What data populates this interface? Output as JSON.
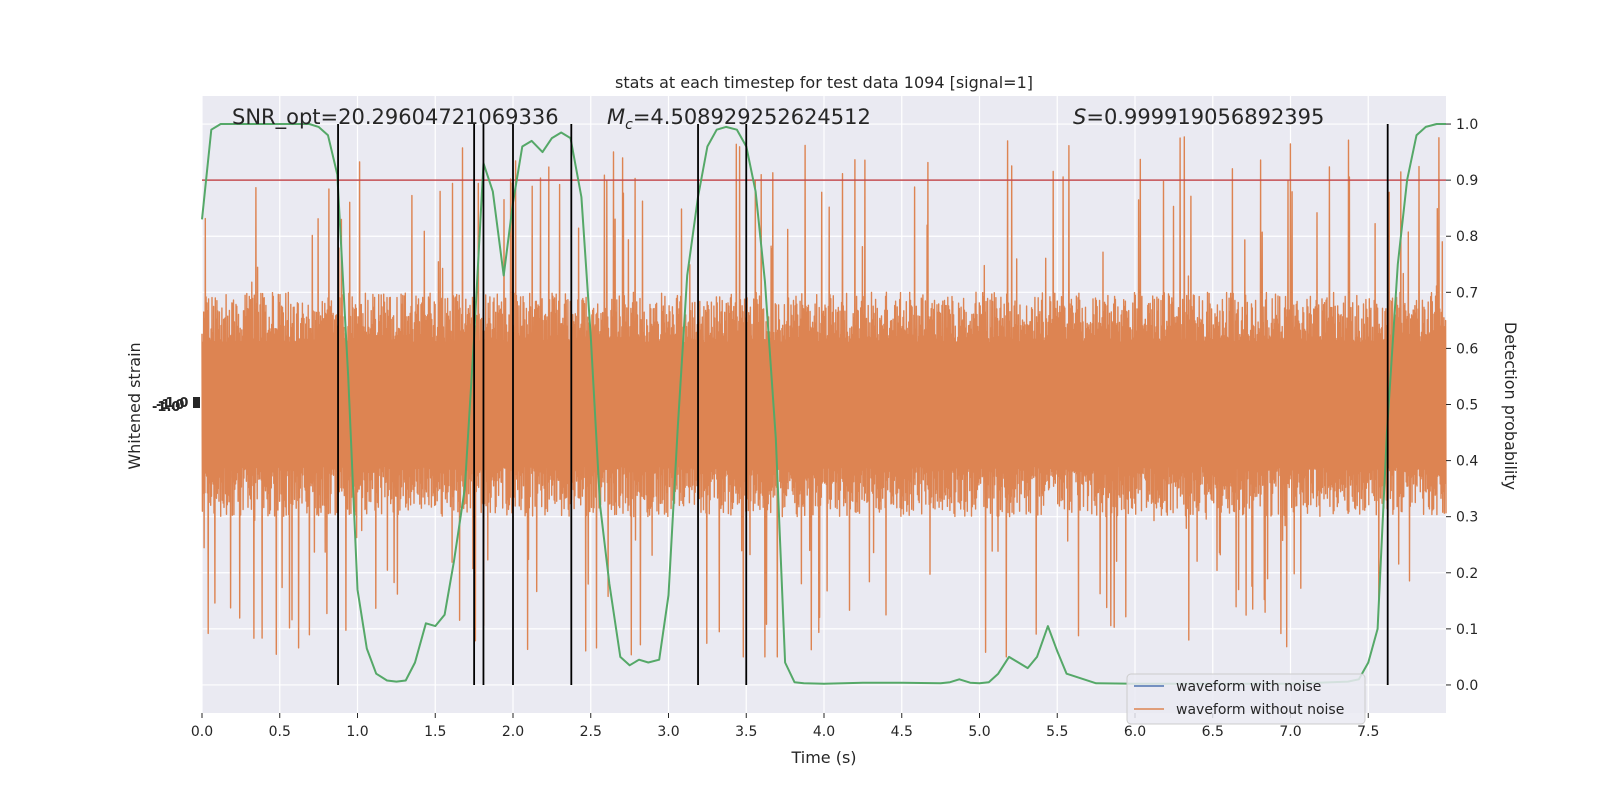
{
  "chart_data": {
    "type": "line",
    "title": "stats at each timestep for test data 1094 [signal=1]",
    "xlabel": "Time (s)",
    "ylabel_left": "Whitened strain",
    "ylabel_right": "Detection probability",
    "xlim": [
      0,
      8
    ],
    "ylim_right": [
      -0.05,
      1.05
    ],
    "x_ticks": [
      "0.0",
      "0.5",
      "1.0",
      "1.5",
      "2.0",
      "2.5",
      "3.0",
      "3.5",
      "4.0",
      "4.5",
      "5.0",
      "5.5",
      "6.0",
      "6.5",
      "7.0",
      "7.5"
    ],
    "y_ticks_right": [
      "0.0",
      "0.1",
      "0.2",
      "0.3",
      "0.4",
      "0.5",
      "0.6",
      "0.7",
      "0.8",
      "0.9",
      "1.0"
    ],
    "left_tick_clutter_text": "-1.0",
    "grid": true,
    "legend_location": "lower right",
    "annotations": {
      "snr": "SNR_opt=20.29604721069336",
      "mc_prefix": "M",
      "mc_sub": "c",
      "mc_value": "=4.508929252624512",
      "s_prefix": "S",
      "s_value": "=0.999919056892395"
    },
    "threshold": 0.9,
    "detection_vlines": [
      0.875,
      1.75,
      1.81,
      2.0,
      2.375,
      3.19,
      3.5,
      7.625
    ],
    "series": [
      {
        "name": "waveform with noise",
        "color": "#4c72b0",
        "style": "dense noise (hidden under orange)"
      },
      {
        "name": "waveform without noise",
        "color": "#dd8452",
        "style": "dense noise trace",
        "center": 0.5,
        "core_half_width": 0.2,
        "spike_range": [
          0.09,
          0.98
        ]
      },
      {
        "name": "detection probability",
        "color": "#55a868",
        "x": [
          0.0,
          0.06,
          0.12,
          0.19,
          0.25,
          0.31,
          0.37,
          0.44,
          0.5,
          0.56,
          0.62,
          0.69,
          0.75,
          0.81,
          0.87,
          0.94,
          1.0,
          1.06,
          1.12,
          1.19,
          1.25,
          1.31,
          1.37,
          1.44,
          1.5,
          1.56,
          1.62,
          1.69,
          1.75,
          1.81,
          1.87,
          1.94,
          2.0,
          2.06,
          2.12,
          2.19,
          2.25,
          2.31,
          2.37,
          2.44,
          2.5,
          2.56,
          2.62,
          2.69,
          2.75,
          2.81,
          2.87,
          2.94,
          3.0,
          3.06,
          3.12,
          3.19,
          3.25,
          3.31,
          3.37,
          3.44,
          3.5,
          3.56,
          3.62,
          3.69,
          3.75,
          3.81,
          3.87,
          4.0,
          4.25,
          4.5,
          4.75,
          4.81,
          4.87,
          4.94,
          5.0,
          5.06,
          5.12,
          5.19,
          5.25,
          5.31,
          5.37,
          5.44,
          5.5,
          5.56,
          5.75,
          6.0,
          6.5,
          7.0,
          7.37,
          7.44,
          7.5,
          7.56,
          7.62,
          7.69,
          7.75,
          7.81,
          7.87,
          7.94,
          8.0
        ],
        "y": [
          0.83,
          0.99,
          1.0,
          1.0,
          1.0,
          1.0,
          1.0,
          1.0,
          1.0,
          1.0,
          1.0,
          1.0,
          0.995,
          0.98,
          0.91,
          0.55,
          0.17,
          0.065,
          0.02,
          0.008,
          0.006,
          0.008,
          0.04,
          0.11,
          0.105,
          0.125,
          0.22,
          0.35,
          0.62,
          0.93,
          0.88,
          0.73,
          0.86,
          0.96,
          0.97,
          0.95,
          0.975,
          0.985,
          0.975,
          0.87,
          0.62,
          0.32,
          0.18,
          0.05,
          0.035,
          0.045,
          0.04,
          0.045,
          0.16,
          0.46,
          0.73,
          0.87,
          0.96,
          0.99,
          0.995,
          0.99,
          0.96,
          0.88,
          0.72,
          0.44,
          0.04,
          0.005,
          0.003,
          0.002,
          0.004,
          0.004,
          0.003,
          0.005,
          0.01,
          0.004,
          0.003,
          0.005,
          0.02,
          0.05,
          0.04,
          0.03,
          0.05,
          0.105,
          0.06,
          0.02,
          0.003,
          0.002,
          0.002,
          0.002,
          0.006,
          0.01,
          0.04,
          0.1,
          0.45,
          0.75,
          0.9,
          0.98,
          0.995,
          1.0,
          1.0
        ]
      },
      {
        "name": "threshold",
        "color": "#c44e52",
        "value": 0.9
      }
    ]
  }
}
